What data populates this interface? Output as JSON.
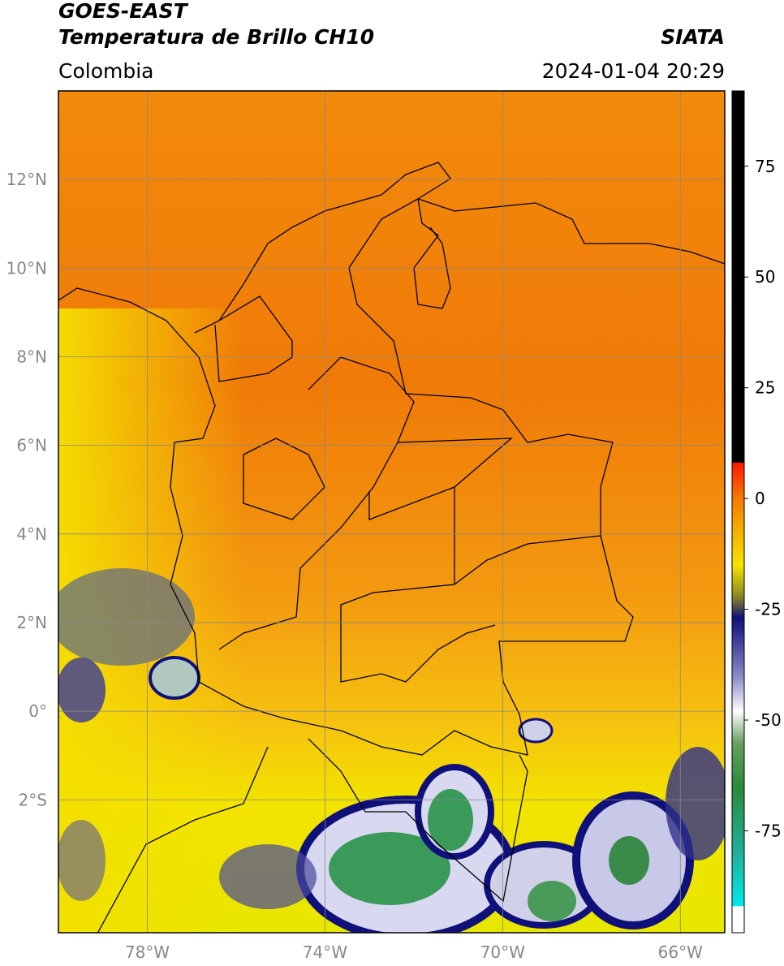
{
  "header": {
    "satellite": "GOES-EAST",
    "product": "Temperatura de Brillo CH10",
    "source": "SIATA",
    "region": "Colombia",
    "datetime": "2024-01-04 20:29"
  },
  "map": {
    "xlim": [
      -80,
      -65
    ],
    "ylim": [
      -5,
      14
    ],
    "grid": true,
    "xticks": [
      {
        "value": -78,
        "label": "78°W"
      },
      {
        "value": -74,
        "label": "74°W"
      },
      {
        "value": -70,
        "label": "70°W"
      },
      {
        "value": -66,
        "label": "66°W"
      }
    ],
    "yticks": [
      {
        "value": 12,
        "label": "12°N"
      },
      {
        "value": 10,
        "label": "10°N"
      },
      {
        "value": 8,
        "label": "8°N"
      },
      {
        "value": 6,
        "label": "6°N"
      },
      {
        "value": 4,
        "label": "4°N"
      },
      {
        "value": 2,
        "label": "2°N"
      },
      {
        "value": 0,
        "label": "0°"
      },
      {
        "value": -2,
        "label": "2°S"
      }
    ]
  },
  "colorbar": {
    "clim": [
      -98,
      92
    ],
    "ticks": [
      75,
      50,
      25,
      0,
      -25,
      -50,
      -75
    ]
  }
}
